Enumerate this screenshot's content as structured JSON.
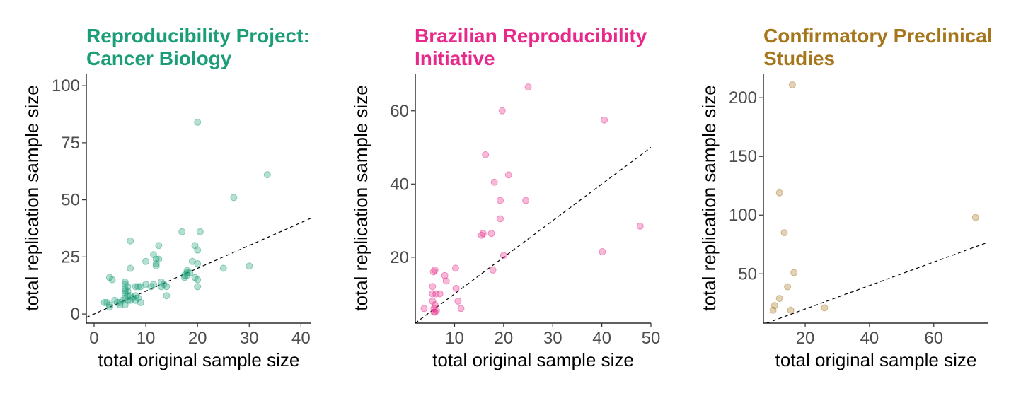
{
  "chart_data": [
    {
      "type": "scatter",
      "title": "Reproducibility Project:\nCancer Biology",
      "title_color": "#1b9e77",
      "point_color": "#1b9e77",
      "xlabel": "total original sample size",
      "ylabel": "total replication sample size",
      "xlim": [
        -1.5,
        42
      ],
      "ylim": [
        -4,
        105
      ],
      "xticks": [
        0,
        10,
        20,
        30,
        40
      ],
      "yticks": [
        0,
        25,
        50,
        75,
        100
      ],
      "reference_line": "y = x",
      "grid": false,
      "points": [
        [
          2,
          5
        ],
        [
          2.5,
          5
        ],
        [
          3,
          3
        ],
        [
          3,
          4
        ],
        [
          3,
          16
        ],
        [
          3.5,
          15
        ],
        [
          4,
          6
        ],
        [
          4.5,
          5
        ],
        [
          5,
          4
        ],
        [
          5,
          5
        ],
        [
          5.5,
          6
        ],
        [
          6,
          4
        ],
        [
          6,
          7
        ],
        [
          6,
          9
        ],
        [
          6,
          10
        ],
        [
          6,
          11
        ],
        [
          6,
          13
        ],
        [
          6,
          14
        ],
        [
          6.5,
          6
        ],
        [
          6.5,
          8
        ],
        [
          6.5,
          10
        ],
        [
          6.5,
          12
        ],
        [
          7,
          20
        ],
        [
          7,
          32
        ],
        [
          7,
          6
        ],
        [
          7,
          8
        ],
        [
          7.5,
          7
        ],
        [
          8,
          6
        ],
        [
          8,
          8
        ],
        [
          8,
          12
        ],
        [
          8.5,
          7
        ],
        [
          8.5,
          12
        ],
        [
          9,
          5
        ],
        [
          9,
          12
        ],
        [
          10,
          13
        ],
        [
          10,
          23
        ],
        [
          11,
          12
        ],
        [
          11.5,
          13
        ],
        [
          11.5,
          26
        ],
        [
          12,
          21
        ],
        [
          12,
          22
        ],
        [
          12,
          24
        ],
        [
          12.5,
          24
        ],
        [
          12.5,
          30
        ],
        [
          13,
          14
        ],
        [
          13,
          12
        ],
        [
          13.5,
          13
        ],
        [
          14,
          8
        ],
        [
          14,
          12
        ],
        [
          17,
          36
        ],
        [
          17.5,
          16
        ],
        [
          17.5,
          17
        ],
        [
          18,
          17
        ],
        [
          18,
          18
        ],
        [
          18,
          19
        ],
        [
          18.5,
          18
        ],
        [
          19,
          23
        ],
        [
          19.5,
          30
        ],
        [
          19.5,
          16
        ],
        [
          20,
          84
        ],
        [
          20,
          28
        ],
        [
          20,
          22
        ],
        [
          20,
          15
        ],
        [
          20,
          12
        ],
        [
          20.5,
          36
        ],
        [
          25,
          20
        ],
        [
          27,
          51
        ],
        [
          30,
          21
        ],
        [
          33.5,
          61
        ]
      ]
    },
    {
      "type": "scatter",
      "title": "Brazilian Reproducibility\nInitiative",
      "title_color": "#e7298a",
      "point_color": "#e7298a",
      "xlabel": "total original sample size",
      "ylabel": "total replication sample size",
      "xlim": [
        2,
        50
      ],
      "ylim": [
        2,
        70
      ],
      "xticks": [
        10,
        20,
        30,
        40,
        50
      ],
      "yticks": [
        20,
        40,
        60
      ],
      "reference_line": "y = x",
      "grid": false,
      "points": [
        [
          3.8,
          6
        ],
        [
          5.5,
          8
        ],
        [
          5.5,
          10
        ],
        [
          5.5,
          12
        ],
        [
          5.7,
          16
        ],
        [
          5.8,
          6
        ],
        [
          5.8,
          5
        ],
        [
          6,
          7
        ],
        [
          6,
          5
        ],
        [
          6,
          16.5
        ],
        [
          6.2,
          10
        ],
        [
          6.3,
          5.5
        ],
        [
          7,
          10
        ],
        [
          8,
          15
        ],
        [
          8.3,
          13.5
        ],
        [
          10.2,
          17
        ],
        [
          10.3,
          11.5
        ],
        [
          10.7,
          8
        ],
        [
          11.3,
          6
        ],
        [
          15.5,
          26
        ],
        [
          15.8,
          26.5
        ],
        [
          16.3,
          48
        ],
        [
          17.5,
          26.5
        ],
        [
          17.8,
          16.5
        ],
        [
          18.1,
          40.5
        ],
        [
          19.3,
          35.5
        ],
        [
          19.3,
          30.5
        ],
        [
          19.7,
          60
        ],
        [
          20,
          20.5
        ],
        [
          21,
          42.5
        ],
        [
          24.5,
          35.5
        ],
        [
          25,
          66.5
        ],
        [
          40.1,
          21.5
        ],
        [
          40.5,
          57.5
        ],
        [
          47.8,
          28.5
        ]
      ]
    },
    {
      "type": "scatter",
      "title": "Confirmatory Preclinical\nStudies",
      "title_color": "#a6761d",
      "point_color": "#a6761d",
      "xlabel": "total original sample size",
      "ylabel": "total replication sample size",
      "xlim": [
        7,
        77
      ],
      "ylim": [
        8,
        220
      ],
      "xticks": [
        20,
        40,
        60
      ],
      "yticks": [
        50,
        100,
        150,
        200
      ],
      "reference_line": "y = x",
      "grid": false,
      "points": [
        [
          10,
          19
        ],
        [
          10.5,
          23
        ],
        [
          12,
          29
        ],
        [
          12,
          119
        ],
        [
          13.5,
          85
        ],
        [
          14.5,
          39
        ],
        [
          15.5,
          19
        ],
        [
          16,
          211
        ],
        [
          16.5,
          51
        ],
        [
          26,
          21
        ],
        [
          73,
          98
        ]
      ]
    }
  ]
}
